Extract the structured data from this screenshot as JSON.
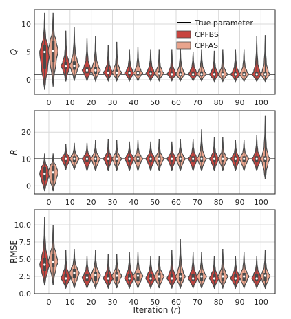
{
  "chart_data": [
    {
      "type": "violin",
      "panel": "Q",
      "ylabel": "Q",
      "ylim": [
        -2.6,
        12.6
      ],
      "yticks": [
        0,
        5,
        10
      ],
      "true_parameter": 1,
      "categories": [
        "0",
        "10",
        "20",
        "30",
        "40",
        "50",
        "60",
        "70",
        "80",
        "90",
        "100"
      ],
      "series": [
        {
          "name": "CPFBS",
          "color": "#c8443f",
          "min": [
            -1.8,
            -0.3,
            -0.2,
            -0.2,
            -0.2,
            -0.2,
            -0.2,
            -0.2,
            -0.3,
            -0.3,
            -0.3
          ],
          "q1": [
            2.0,
            1.9,
            1.2,
            0.9,
            0.8,
            0.8,
            0.7,
            0.7,
            0.6,
            0.6,
            0.6
          ],
          "median": [
            5.0,
            2.4,
            1.7,
            1.3,
            1.2,
            1.1,
            1.0,
            1.0,
            1.0,
            1.0,
            1.0
          ],
          "q3": [
            6.2,
            3.2,
            2.2,
            1.8,
            1.6,
            1.6,
            1.5,
            1.5,
            1.4,
            1.4,
            1.4
          ],
          "max": [
            12.0,
            8.8,
            7.5,
            6.2,
            5.5,
            5.5,
            5.5,
            5.0,
            5.2,
            5.5,
            7.8
          ]
        },
        {
          "name": "CPFAS",
          "color": "#e9a48d",
          "min": [
            -1.2,
            -0.2,
            -0.2,
            -0.2,
            -0.2,
            -0.2,
            -0.2,
            -0.2,
            -0.3,
            -0.3,
            -0.3
          ],
          "q1": [
            3.2,
            1.8,
            1.1,
            0.9,
            0.8,
            0.8,
            0.7,
            0.7,
            0.6,
            0.6,
            0.6
          ],
          "median": [
            5.2,
            2.5,
            1.7,
            1.3,
            1.2,
            1.1,
            1.0,
            1.0,
            1.0,
            1.0,
            1.0
          ],
          "q3": [
            7.0,
            3.3,
            2.3,
            1.8,
            1.6,
            1.6,
            1.5,
            1.5,
            1.4,
            1.4,
            1.4
          ],
          "max": [
            12.0,
            9.5,
            7.8,
            6.8,
            5.8,
            5.5,
            5.8,
            5.5,
            5.5,
            5.5,
            8.0
          ]
        }
      ]
    },
    {
      "type": "violin",
      "panel": "R",
      "ylabel": "R",
      "ylim": [
        -3,
        28
      ],
      "yticks": [
        0,
        10,
        20
      ],
      "true_parameter": 10,
      "categories": [
        "0",
        "10",
        "20",
        "30",
        "40",
        "50",
        "60",
        "70",
        "80",
        "90",
        "100"
      ],
      "series": [
        {
          "name": "CPFBS",
          "color": "#c8443f",
          "min": [
            -2.0,
            6.0,
            5.5,
            5.5,
            5.5,
            5.5,
            5.5,
            5.5,
            5.5,
            5.5,
            5.5
          ],
          "q1": [
            2.0,
            9.0,
            9.0,
            9.0,
            9.0,
            9.0,
            9.0,
            9.0,
            9.0,
            9.0,
            9.0
          ],
          "median": [
            4.5,
            10.0,
            10.0,
            10.0,
            10.0,
            10.0,
            10.0,
            10.0,
            10.0,
            10.0,
            10.0
          ],
          "q3": [
            7.0,
            11.0,
            11.0,
            11.0,
            11.0,
            11.0,
            11.0,
            11.0,
            11.0,
            11.0,
            11.0
          ],
          "max": [
            12.0,
            15.5,
            16.0,
            17.5,
            16.5,
            16.5,
            16.5,
            17.5,
            18.0,
            17.0,
            19.0
          ]
        },
        {
          "name": "CPFAS",
          "color": "#e9a48d",
          "min": [
            -2.0,
            6.0,
            5.5,
            5.5,
            5.5,
            5.5,
            5.5,
            5.5,
            5.5,
            5.5,
            2.5
          ],
          "q1": [
            2.0,
            9.0,
            9.0,
            9.0,
            9.0,
            9.0,
            9.0,
            9.0,
            9.0,
            9.0,
            9.0
          ],
          "median": [
            5.0,
            10.0,
            10.0,
            10.0,
            10.0,
            10.0,
            10.0,
            10.0,
            10.0,
            10.0,
            10.0
          ],
          "q3": [
            7.5,
            11.0,
            11.0,
            11.0,
            11.0,
            11.0,
            11.0,
            11.0,
            11.0,
            11.0,
            11.0
          ],
          "max": [
            12.0,
            16.0,
            17.0,
            17.0,
            17.0,
            17.5,
            17.5,
            21.0,
            18.0,
            17.0,
            26.0
          ]
        }
      ]
    },
    {
      "type": "violin",
      "panel": "RMSE",
      "ylabel": "RMSE",
      "ylim": [
        0,
        12.2
      ],
      "yticks": [
        0.0,
        2.5,
        5.0,
        7.5,
        10.0
      ],
      "categories": [
        "0",
        "10",
        "20",
        "30",
        "40",
        "50",
        "60",
        "70",
        "80",
        "90",
        "100"
      ],
      "series": [
        {
          "name": "CPFBS",
          "color": "#c8443f",
          "min": [
            1.2,
            0.8,
            0.8,
            0.8,
            0.8,
            0.8,
            0.8,
            0.8,
            0.8,
            0.8,
            0.8
          ],
          "q1": [
            3.3,
            1.8,
            1.8,
            1.8,
            1.8,
            1.8,
            1.8,
            1.8,
            1.8,
            1.8,
            1.8
          ],
          "median": [
            4.2,
            2.2,
            2.3,
            2.2,
            2.2,
            2.2,
            2.2,
            2.2,
            2.2,
            2.2,
            2.2
          ],
          "q3": [
            5.2,
            2.9,
            2.8,
            2.8,
            2.8,
            2.8,
            2.8,
            2.8,
            2.8,
            2.8,
            2.8
          ],
          "max": [
            11.2,
            6.3,
            5.5,
            5.7,
            6.0,
            5.5,
            6.3,
            6.0,
            5.5,
            5.5,
            5.5
          ]
        },
        {
          "name": "CPFAS",
          "color": "#e9a48d",
          "min": [
            1.2,
            0.8,
            0.8,
            0.8,
            0.8,
            0.8,
            0.8,
            0.8,
            0.8,
            0.8,
            0.8
          ],
          "q1": [
            3.8,
            2.2,
            1.9,
            1.9,
            1.9,
            1.9,
            1.9,
            1.9,
            1.9,
            1.9,
            1.9
          ],
          "median": [
            4.6,
            3.0,
            2.7,
            2.6,
            2.6,
            2.5,
            2.5,
            2.5,
            2.5,
            2.5,
            2.6
          ],
          "q3": [
            5.8,
            3.6,
            3.2,
            3.1,
            3.0,
            3.0,
            3.0,
            3.0,
            3.0,
            3.0,
            3.0
          ],
          "max": [
            10.0,
            6.5,
            6.3,
            5.8,
            6.0,
            5.5,
            8.0,
            6.0,
            6.5,
            6.0,
            6.3
          ]
        }
      ]
    }
  ],
  "legend": {
    "true_label": "True parameter",
    "entries": [
      "CPFBS",
      "CPFAS"
    ],
    "placement": "top-right",
    "true_color": "#000000"
  },
  "xlabel": "Iteration (r)",
  "xlabel_plain": "Iteration (",
  "xlabel_var": "r",
  "xlabel_end": ")",
  "style": {
    "violin_edge": "#4a4a4a",
    "grid": "#d9d9d9"
  }
}
